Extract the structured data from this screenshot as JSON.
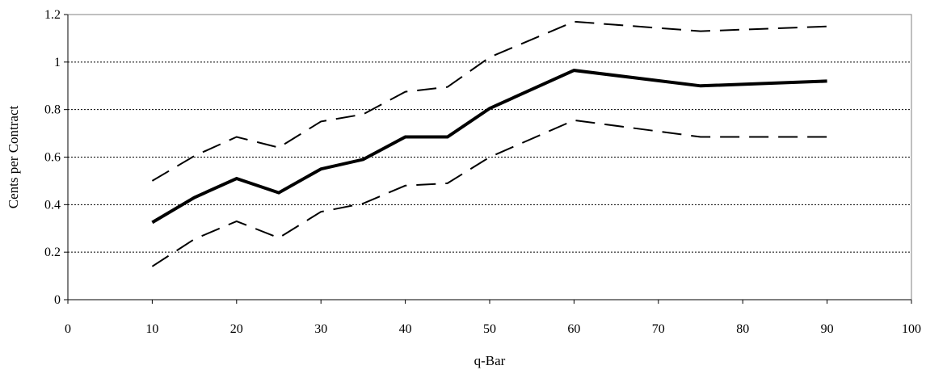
{
  "chart_data": {
    "type": "line",
    "title": "",
    "xlabel": "q-Bar",
    "ylabel": "Cents per Contract",
    "xlim": [
      0,
      100
    ],
    "ylim": [
      0,
      1.2
    ],
    "x_ticks": [
      "0",
      "10",
      "20",
      "30",
      "40",
      "50",
      "60",
      "70",
      "80",
      "90",
      "100"
    ],
    "y_ticks": [
      "0",
      "0.2",
      "0.4",
      "0.6",
      "0.8",
      "1",
      "1.2"
    ],
    "grid": "horizontal dotted",
    "legend": "none",
    "x": [
      10,
      15,
      20,
      25,
      30,
      35,
      40,
      45,
      50,
      60,
      75,
      90
    ],
    "series": [
      {
        "style": "solid-thick",
        "color": "#000000",
        "values": [
          0.325,
          0.43,
          0.51,
          0.45,
          0.55,
          0.59,
          0.685,
          0.685,
          0.805,
          0.965,
          0.9,
          0.92
        ]
      },
      {
        "style": "dashed",
        "color": "#000000",
        "values": [
          0.5,
          0.605,
          0.685,
          0.64,
          0.75,
          0.78,
          0.875,
          0.895,
          1.02,
          1.17,
          1.13,
          1.15
        ]
      },
      {
        "style": "dashed",
        "color": "#000000",
        "values": [
          0.14,
          0.255,
          0.33,
          0.26,
          0.37,
          0.405,
          0.48,
          0.49,
          0.6,
          0.755,
          0.685,
          0.685
        ]
      }
    ]
  }
}
